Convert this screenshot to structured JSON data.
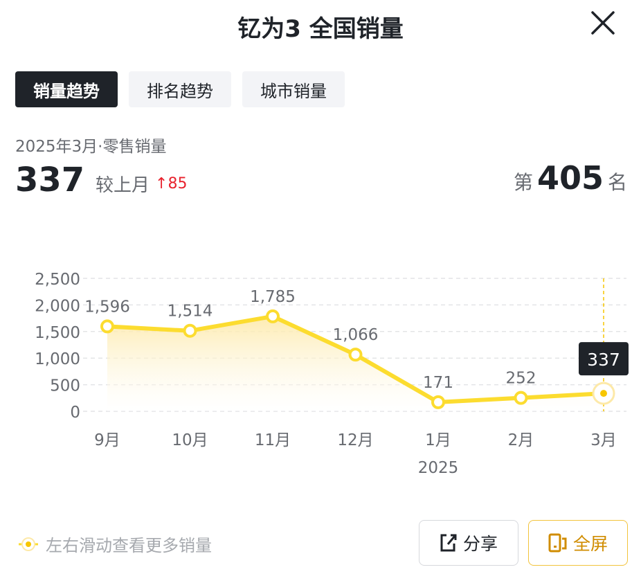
{
  "header": {
    "title": "钇为3 全国销量",
    "close_icon": "close-icon"
  },
  "tabs": [
    {
      "label": "销量趋势",
      "active": true
    },
    {
      "label": "排名趋势"
    },
    {
      "label": "城市销量"
    }
  ],
  "summary": {
    "period": "2025年3月·零售销量",
    "value": "337",
    "compare_label": "较上月",
    "delta": "85",
    "delta_direction": "up",
    "rank_prefix": "第",
    "rank": "405",
    "rank_suffix": "名"
  },
  "colors": {
    "line": "#fcdc2f",
    "delta_up": "#e8222d",
    "accent": "#d08c00"
  },
  "chart_data": {
    "type": "area",
    "categories": [
      "9月",
      "10月",
      "11月",
      "12月",
      "1月",
      "2月",
      "3月"
    ],
    "year_label": "2025",
    "values": [
      1596,
      1514,
      1785,
      1066,
      171,
      252,
      337
    ],
    "value_labels": [
      "1,596",
      "1,514",
      "1,785",
      "1,066",
      "171",
      "252",
      "337"
    ],
    "yticks": [
      "0",
      "500",
      "1,000",
      "1,500",
      "2,000",
      "2,500"
    ],
    "ylim": [
      0,
      2500
    ],
    "grid": true,
    "highlighted": "3月"
  },
  "footer": {
    "hint": "左右滑动查看更多销量",
    "share_label": "分享",
    "fullscreen_label": "全屏"
  }
}
